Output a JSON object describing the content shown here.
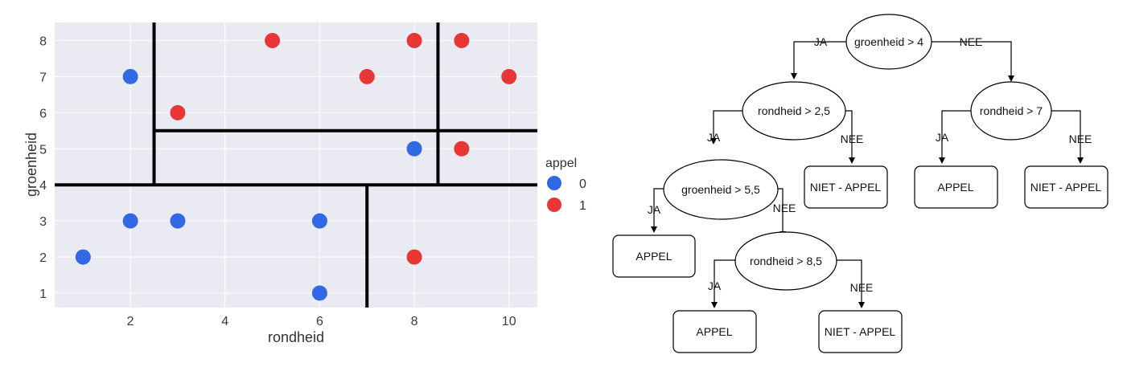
{
  "chart_data": {
    "type": "scatter",
    "xlabel": "rondheid",
    "ylabel": "groenheid",
    "xlim": [
      0.4,
      10.6
    ],
    "ylim": [
      0.6,
      8.5
    ],
    "x_ticks": [
      "2",
      "4",
      "6",
      "8",
      "10"
    ],
    "y_ticks": [
      "1",
      "2",
      "3",
      "4",
      "5",
      "6",
      "7",
      "8"
    ],
    "grid": true,
    "legend": {
      "title": "appel",
      "placement": "right",
      "entries": [
        {
          "label": "0",
          "color": "#3169e5"
        },
        {
          "label": "1",
          "color": "#e83535"
        }
      ]
    },
    "series": [
      {
        "name": "0",
        "color": "#3169e5",
        "points": [
          [
            1,
            2
          ],
          [
            2,
            3
          ],
          [
            2,
            7
          ],
          [
            3,
            3
          ],
          [
            6,
            1
          ],
          [
            6,
            3
          ],
          [
            8,
            5
          ]
        ]
      },
      {
        "name": "1",
        "color": "#e83535",
        "points": [
          [
            3,
            6
          ],
          [
            5,
            8
          ],
          [
            7,
            7
          ],
          [
            8,
            2
          ],
          [
            8,
            8
          ],
          [
            9,
            5
          ],
          [
            9,
            8
          ],
          [
            10,
            7
          ]
        ]
      }
    ],
    "decision_boundaries": [
      {
        "orientation": "horizontal",
        "value": 4
      },
      {
        "orientation": "vertical",
        "value": 2.5,
        "from": 4
      },
      {
        "orientation": "horizontal",
        "value": 5.5,
        "from": 2.5
      },
      {
        "orientation": "vertical",
        "value": 8.5,
        "from": 4
      },
      {
        "orientation": "vertical",
        "value": 7,
        "to": 4
      }
    ],
    "colors": {
      "background": "#eaeaf2",
      "grid": "#ffffff",
      "boundary": "#000000"
    }
  },
  "tree": {
    "nodes": [
      {
        "id": "n_root",
        "shape": "ellipse",
        "label": "groenheid > 4"
      },
      {
        "id": "n_rond25",
        "shape": "ellipse",
        "label": "rondheid > 2,5"
      },
      {
        "id": "n_rond7",
        "shape": "ellipse",
        "label": "rondheid > 7"
      },
      {
        "id": "n_groen55",
        "shape": "ellipse",
        "label": "groenheid > 5,5"
      },
      {
        "id": "leaf_niet_1",
        "shape": "box",
        "label": "NIET - APPEL"
      },
      {
        "id": "leaf_appel_1",
        "shape": "box",
        "label": "APPEL"
      },
      {
        "id": "leaf_niet_2",
        "shape": "box",
        "label": "NIET - APPEL"
      },
      {
        "id": "leaf_appel_2",
        "shape": "box",
        "label": "APPEL"
      },
      {
        "id": "n_rond85",
        "shape": "ellipse",
        "label": "rondheid > 8,5"
      },
      {
        "id": "leaf_appel_3",
        "shape": "box",
        "label": "APPEL"
      },
      {
        "id": "leaf_niet_3",
        "shape": "box",
        "label": "NIET - APPEL"
      }
    ],
    "edges": [
      {
        "from": "n_root",
        "to": "n_rond25",
        "label": "JA"
      },
      {
        "from": "n_root",
        "to": "n_rond7",
        "label": "NEE"
      },
      {
        "from": "n_rond25",
        "to": "n_groen55",
        "label": "JA"
      },
      {
        "from": "n_rond25",
        "to": "leaf_niet_1",
        "label": "NEE"
      },
      {
        "from": "n_rond7",
        "to": "leaf_appel_1",
        "label": "JA"
      },
      {
        "from": "n_rond7",
        "to": "leaf_niet_2",
        "label": "NEE"
      },
      {
        "from": "n_groen55",
        "to": "leaf_appel_2",
        "label": "JA"
      },
      {
        "from": "n_groen55",
        "to": "n_rond85",
        "label": "NEE"
      },
      {
        "from": "n_rond85",
        "to": "leaf_appel_3",
        "label": "JA"
      },
      {
        "from": "n_rond85",
        "to": "leaf_niet_3",
        "label": "NEE"
      }
    ]
  }
}
